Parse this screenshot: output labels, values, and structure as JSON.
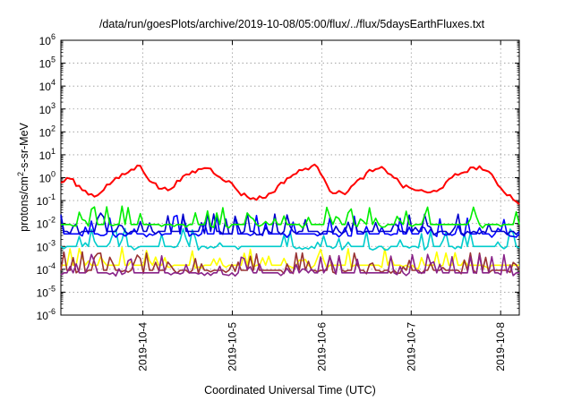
{
  "chart_data": {
    "type": "line",
    "title": "/data/run/goesPlots/archive/2019-10-08/05:00/flux/../flux/5daysEarthFluxes.txt",
    "xlabel": "Coordinated Universal Time (UTC)",
    "ylabel": {
      "base": "protons/cm",
      "sup": "2",
      "rest": "-s-sr-MeV"
    },
    "x_range": [
      "2019-10-03T02:00",
      "2019-10-08T05:00"
    ],
    "x_ticks": [
      "2019-10-4",
      "2019-10-5",
      "2019-10-6",
      "2019-10-7",
      "2019-10-8"
    ],
    "y_scale": "log",
    "ylim": [
      1e-06,
      1000000.0
    ],
    "y_tick_exponents": [
      -6,
      -5,
      -4,
      -3,
      -2,
      -1,
      0,
      1,
      2,
      3,
      4,
      5,
      6
    ],
    "grid": true,
    "legend": "none",
    "series": [
      {
        "color": "#ff0000",
        "base": 0.5,
        "spiky": false,
        "anchors": [
          [
            0,
            0.6
          ],
          [
            0.2,
            1.0
          ],
          [
            0.5,
            0.3
          ],
          [
            0.8,
            0.15
          ],
          [
            1.1,
            0.5
          ],
          [
            1.5,
            1.5
          ],
          [
            1.85,
            3.5
          ],
          [
            2.05,
            0.9
          ],
          [
            2.3,
            0.35
          ],
          [
            2.5,
            0.3
          ],
          [
            2.7,
            0.6
          ],
          [
            3.0,
            1.5
          ],
          [
            3.4,
            3.0
          ],
          [
            3.7,
            1.2
          ],
          [
            4.0,
            0.5
          ],
          [
            4.2,
            0.2
          ],
          [
            4.5,
            0.12
          ],
          [
            4.8,
            0.15
          ],
          [
            5.0,
            0.3
          ],
          [
            5.3,
            1.0
          ],
          [
            5.6,
            2.0
          ],
          [
            5.9,
            3.5
          ],
          [
            6.1,
            1.5
          ],
          [
            6.3,
            0.25
          ],
          [
            6.6,
            0.2
          ],
          [
            6.9,
            0.6
          ],
          [
            7.2,
            1.8
          ],
          [
            7.5,
            2.5
          ],
          [
            7.7,
            1.5
          ],
          [
            8.0,
            0.4
          ],
          [
            8.3,
            0.3
          ],
          [
            8.6,
            0.2
          ],
          [
            8.9,
            0.4
          ],
          [
            9.2,
            1.2
          ],
          [
            9.5,
            2.2
          ],
          [
            9.8,
            3.0
          ],
          [
            10.1,
            1.0
          ],
          [
            10.3,
            0.3
          ],
          [
            10.5,
            0.15
          ],
          [
            10.7,
            0.08
          ]
        ]
      },
      {
        "color": "#00ee00",
        "base": 0.009,
        "spiky": true,
        "anchors": []
      },
      {
        "color": "#00cccc",
        "base": 0.001,
        "spiky": true,
        "anchors": []
      },
      {
        "color": "#0000ff",
        "base": 0.0035,
        "spiky": true,
        "anchors": []
      },
      {
        "color": "#0000cc",
        "base": 0.0045,
        "spiky": true,
        "anchors": []
      },
      {
        "color": "#ffff00",
        "base": 0.00015,
        "spiky": true,
        "anchors": []
      },
      {
        "color": "#993333",
        "base": 9e-05,
        "spiky": true,
        "anchors": []
      },
      {
        "color": "#882288",
        "base": 7e-05,
        "spiky": true,
        "anchors": []
      }
    ]
  }
}
